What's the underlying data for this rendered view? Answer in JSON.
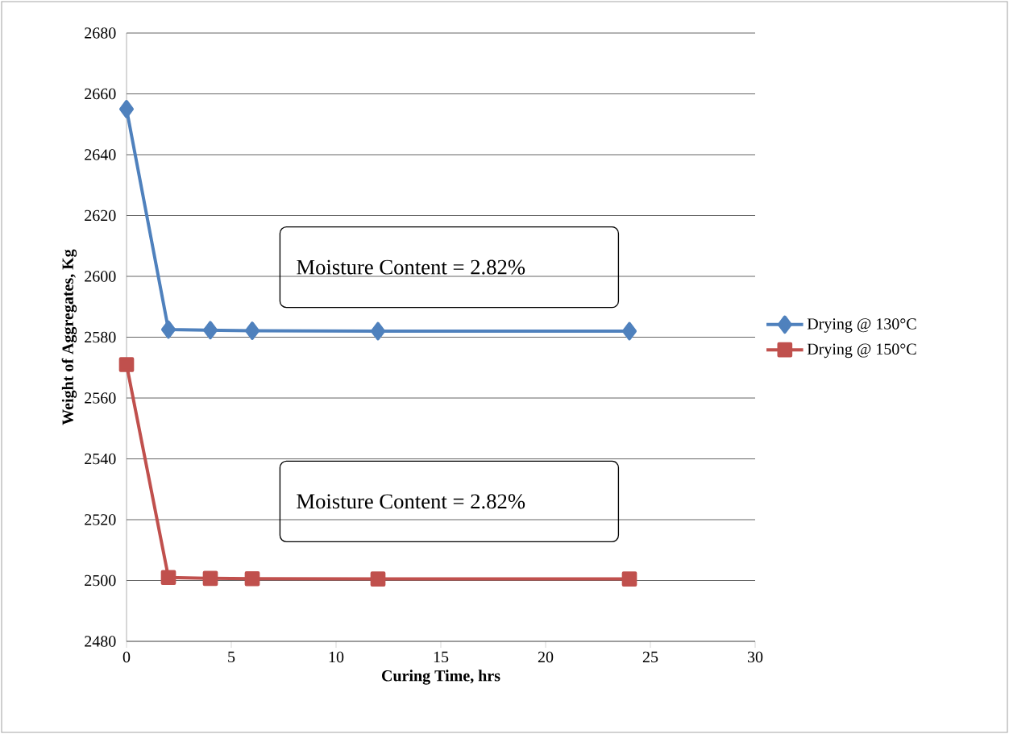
{
  "chart_data": {
    "type": "line",
    "xlabel": "Curing Time, hrs",
    "ylabel": "Weight of Aggregates, Kg",
    "x": [
      0,
      2,
      4,
      6,
      12,
      24
    ],
    "series": [
      {
        "name": "Drying @ 130°C",
        "color": "#4f81bd",
        "marker": "diamond",
        "values": [
          2655,
          2582.5,
          2582.3,
          2582.1,
          2582,
          2582
        ]
      },
      {
        "name": "Drying @ 150°C",
        "color": "#c0504d",
        "marker": "square",
        "values": [
          2571,
          2501,
          2500.7,
          2500.6,
          2500.5,
          2500.5
        ]
      }
    ],
    "xlim": [
      0,
      30
    ],
    "xticks": [
      0,
      5,
      10,
      15,
      20,
      25,
      30
    ],
    "ylim": [
      2480,
      2680
    ],
    "yticks": [
      2480,
      2500,
      2520,
      2540,
      2560,
      2580,
      2600,
      2620,
      2640,
      2660,
      2680
    ],
    "grid": "y",
    "legend": "right",
    "line_style": "solid",
    "annotations": [
      "Moisture Content = 2.82%",
      "Moisture Content = 2.82%"
    ]
  }
}
